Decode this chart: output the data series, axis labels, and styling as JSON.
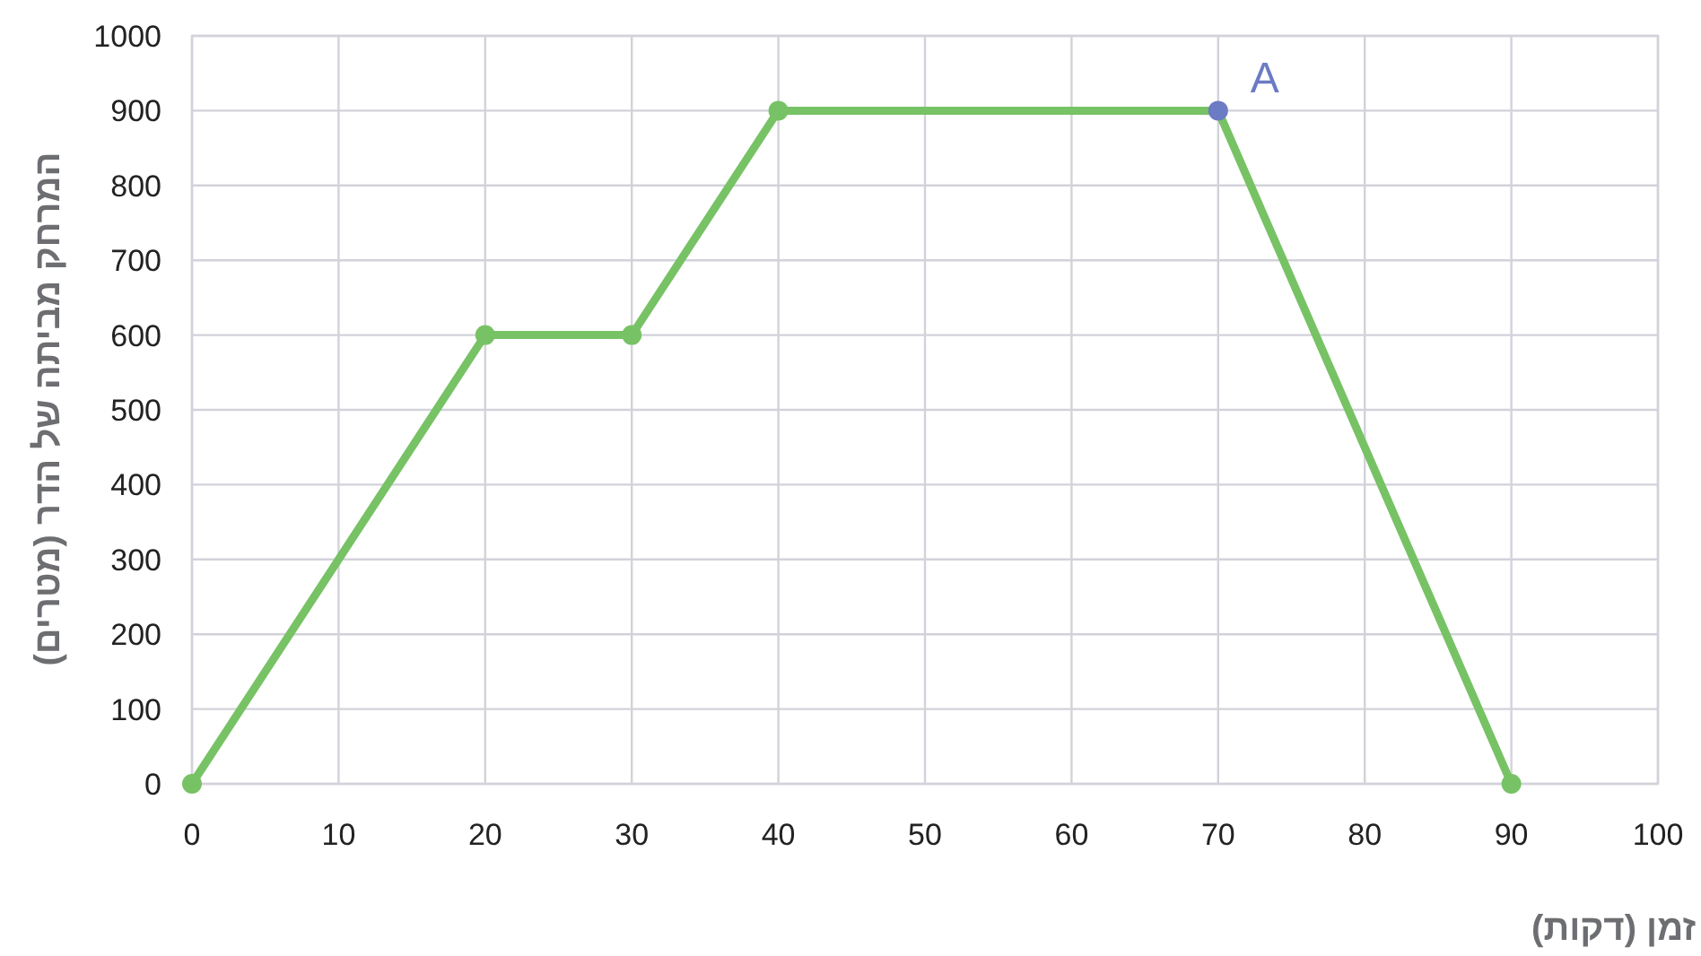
{
  "chart_data": {
    "type": "line",
    "xlabel": "זמן (דקות)",
    "ylabel": "המרחק מביתה של הדר (מטרים)",
    "x": [
      0,
      20,
      30,
      40,
      70,
      90
    ],
    "series": [
      {
        "color": "#77c265",
        "colors": [
          "#77c265",
          "#77c265",
          "#77c265",
          "#77c265",
          "#6b7bc4",
          "#77c265"
        ],
        "values": [
          0,
          600,
          600,
          900,
          900,
          0
        ]
      }
    ],
    "annotations": [
      {
        "text": "A",
        "x": 70,
        "y": 900
      }
    ],
    "xlim": [
      0,
      100
    ],
    "ylim": [
      0,
      1000
    ],
    "xticks": [
      0,
      10,
      20,
      30,
      40,
      50,
      60,
      70,
      80,
      90,
      100
    ],
    "yticks": [
      0,
      100,
      200,
      300,
      400,
      500,
      600,
      700,
      800,
      900,
      1000
    ],
    "grid": true,
    "marker": "circle",
    "line_style": "solid"
  }
}
